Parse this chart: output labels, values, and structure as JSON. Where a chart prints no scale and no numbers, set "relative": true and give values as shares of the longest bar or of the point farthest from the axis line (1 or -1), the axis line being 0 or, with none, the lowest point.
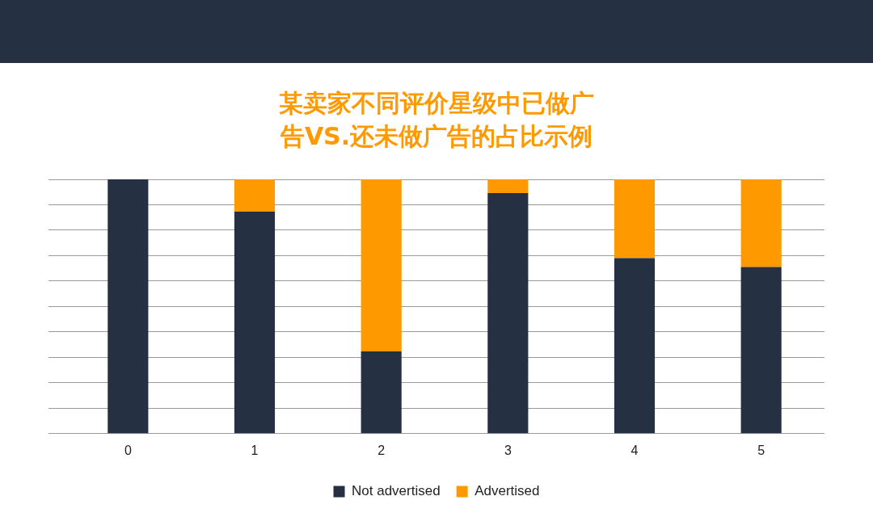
{
  "chart_data": {
    "type": "bar",
    "title": "某卖家不同评价星级中已做广告VS.还未做广告的占比示例",
    "categories": [
      "0",
      "1",
      "2",
      "3",
      "4",
      "5"
    ],
    "stacked": true,
    "relative": true,
    "grid": "y",
    "legend": "bottom",
    "series": [
      {
        "name": "Not advertised",
        "color": "#253142",
        "values": [
          1,
          0.873,
          0.323,
          0.946,
          0.69,
          0.655
        ]
      },
      {
        "name": "Advertised",
        "color": "#ff9900",
        "values": [
          0,
          0.127,
          0.677,
          0.054,
          0.31,
          0.345
        ]
      }
    ]
  }
}
